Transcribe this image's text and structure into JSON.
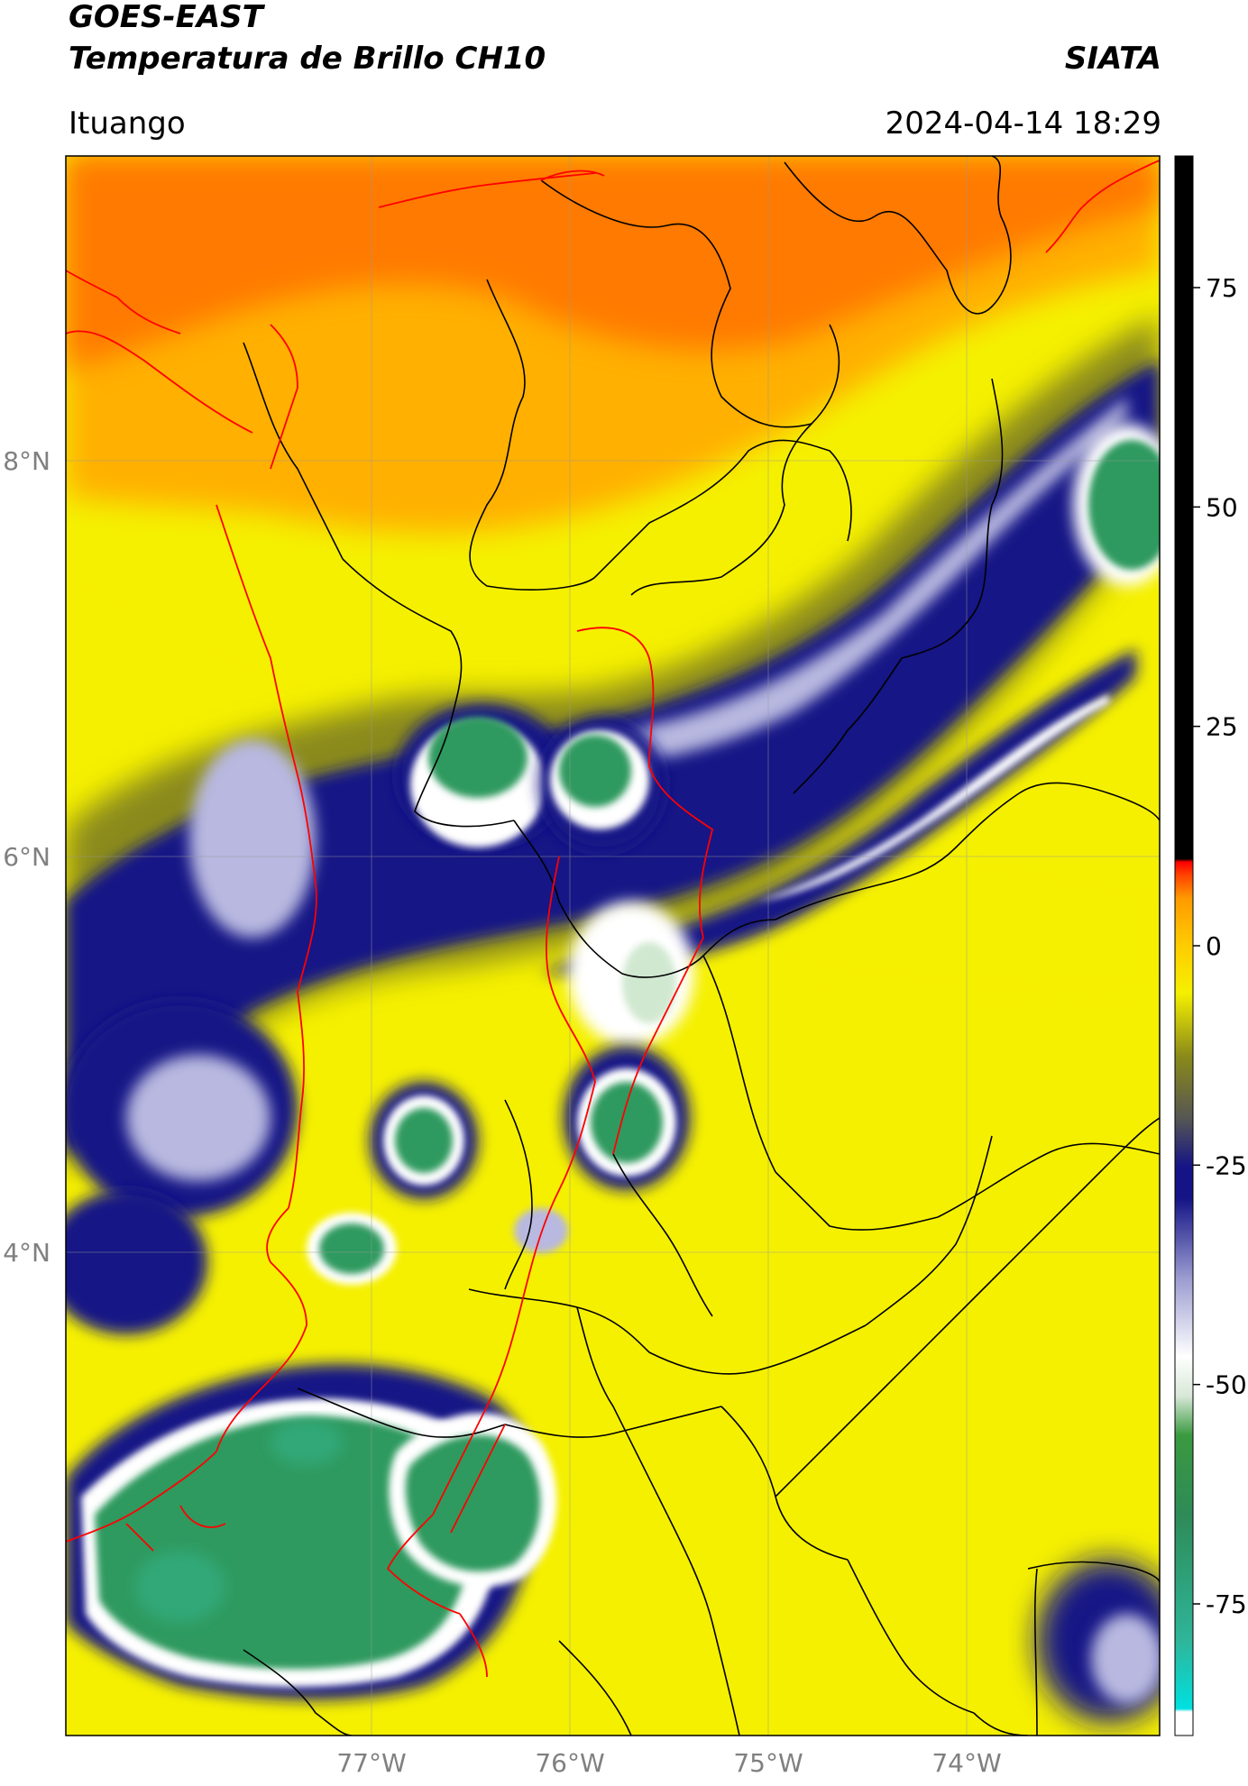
{
  "header": {
    "title_line1": "GOES-EAST",
    "title_line2": "Temperatura de Brillo CH10",
    "agency": "SIATA",
    "location": "Ituango",
    "timestamp": "2024-04-14 18:29"
  },
  "map": {
    "lon_range": [
      -78.5,
      -72.9
    ],
    "lat_range": [
      2.1,
      9.55
    ],
    "lat_ticks": [
      {
        "value": 8,
        "label": "8°N"
      },
      {
        "value": 6,
        "label": "6°N"
      },
      {
        "value": 4,
        "label": "4°N"
      }
    ],
    "lon_ticks": [
      {
        "value": -77,
        "label": "77°W"
      },
      {
        "value": -76,
        "label": "76°W"
      },
      {
        "value": -75,
        "label": "75°W"
      },
      {
        "value": -74,
        "label": "74°W"
      }
    ],
    "colors": {
      "warm_orange": "#ff7a00",
      "orange": "#ffb000",
      "yellow": "#f5f000",
      "olive": "#8a8a1a",
      "navy": "#141486",
      "lavender": "#b8b8e0",
      "white": "#ffffff",
      "green": "#2e9a5e",
      "boundary_black": "#000000",
      "boundary_red": "#ff0000"
    }
  },
  "colorbar": {
    "ticks": [
      {
        "value": 75,
        "label": "75"
      },
      {
        "value": 50,
        "label": "50"
      },
      {
        "value": 25,
        "label": "25"
      },
      {
        "value": 0,
        "label": "0"
      },
      {
        "value": -25,
        "label": "-25"
      },
      {
        "value": -50,
        "label": "-50"
      },
      {
        "value": -75,
        "label": "-75"
      }
    ],
    "vmin": -90,
    "vmax": 90
  }
}
